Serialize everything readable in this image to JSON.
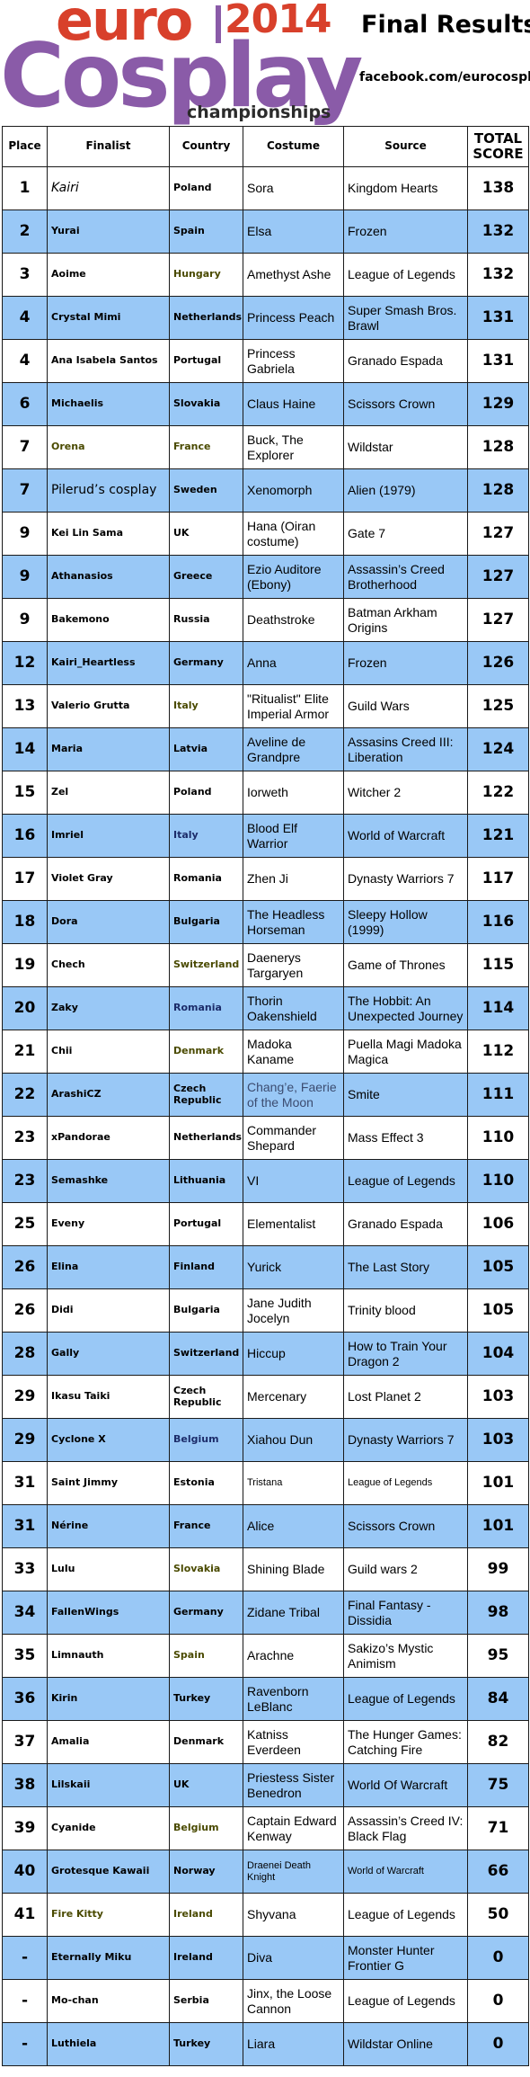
{
  "header": {
    "logo_euro": "euro",
    "logo_year": "2014",
    "logo_cosplay": "Cosplay",
    "logo_champ": "championships",
    "title": "Final Results",
    "facebook": "facebook.com/eurocosplay"
  },
  "columns": {
    "place": "Place",
    "finalist": "Finalist",
    "country": "Country",
    "costume": "Costume",
    "source": "Source",
    "total_line1": "TOTAL",
    "total_line2": "SCORE"
  },
  "colors": {
    "row_blue": "#99c8f6",
    "logo_red": "#d8402b",
    "logo_purple": "#8a5ba8"
  },
  "rows": [
    {
      "place": "1",
      "finalist": "Kairi",
      "country": "Poland",
      "costume": "Sora",
      "source": "Kingdom Hearts",
      "score": "138"
    },
    {
      "place": "2",
      "finalist": "Yurai",
      "country": "Spain",
      "costume": "Elsa",
      "source": "Frozen",
      "score": "132"
    },
    {
      "place": "3",
      "finalist": "Aoime",
      "country": "Hungary",
      "costume": "Amethyst Ashe",
      "source": "League of Legends",
      "score": "132"
    },
    {
      "place": "4",
      "finalist": "Crystal Mimi",
      "country": "Netherlands",
      "costume": "Princess Peach",
      "source": "Super Smash Bros. Brawl",
      "score": "131"
    },
    {
      "place": "4",
      "finalist": "Ana Isabela Santos",
      "country": "Portugal",
      "costume": "Princess Gabriela",
      "source": "Granado Espada",
      "score": "131"
    },
    {
      "place": "6",
      "finalist": "Michaelis",
      "country": "Slovakia",
      "costume": "Claus Haine",
      "source": "Scissors Crown",
      "score": "129"
    },
    {
      "place": "7",
      "finalist": "Orena",
      "country": "France",
      "costume": "Buck, The Explorer",
      "source": "Wildstar",
      "score": "128"
    },
    {
      "place": "7",
      "finalist": "Pilerud’s cosplay",
      "country": "Sweden",
      "costume": "Xenomorph",
      "source": "Alien (1979)",
      "score": "128"
    },
    {
      "place": "9",
      "finalist": "Kei Lin Sama",
      "country": "UK",
      "costume": "Hana (Oiran costume)",
      "source": "Gate 7",
      "score": "127"
    },
    {
      "place": "9",
      "finalist": "Athanasios",
      "country": "Greece",
      "costume": "Ezio Auditore (Ebony)",
      "source": "Assassin’s Creed Brotherhood",
      "score": "127"
    },
    {
      "place": "9",
      "finalist": "Bakemono",
      "country": "Russia",
      "costume": "Deathstroke",
      "source": "Batman Arkham Origins",
      "score": "127"
    },
    {
      "place": "12",
      "finalist": "Kairi_Heartless",
      "country": "Germany",
      "costume": "Anna",
      "source": "Frozen",
      "score": "126"
    },
    {
      "place": "13",
      "finalist": "Valerio Grutta",
      "country": "Italy",
      "costume": "\"Ritualist\" Elite Imperial Armor",
      "source": "Guild Wars",
      "score": "125"
    },
    {
      "place": "14",
      "finalist": "Maria",
      "country": "Latvia",
      "costume": "Aveline de Grandpre",
      "source": "Assasins Creed III: Liberation",
      "score": "124"
    },
    {
      "place": "15",
      "finalist": "Zel",
      "country": "Poland",
      "costume": "Iorweth",
      "source": "Witcher 2",
      "score": "122"
    },
    {
      "place": "16",
      "finalist": "Imriel",
      "country": "Italy",
      "costume": "Blood Elf Warrior",
      "source": "World of Warcraft",
      "score": "121"
    },
    {
      "place": "17",
      "finalist": "Violet Gray",
      "country": "Romania",
      "costume": "Zhen Ji",
      "source": "Dynasty Warriors 7",
      "score": "117"
    },
    {
      "place": "18",
      "finalist": "Dora",
      "country": "Bulgaria",
      "costume": "The Headless Horseman",
      "source": "Sleepy Hollow (1999)",
      "score": "116"
    },
    {
      "place": "19",
      "finalist": "Chech",
      "country": "Switzerland",
      "costume": "Daenerys Targaryen",
      "source": "Game of Thrones",
      "score": "115"
    },
    {
      "place": "20",
      "finalist": "Zaky",
      "country": "Romania",
      "costume": "Thorin Oakenshield",
      "source": "The Hobbit: An Unexpected Journey",
      "score": "114"
    },
    {
      "place": "21",
      "finalist": "Chii",
      "country": "Denmark",
      "costume": "Madoka Kaname",
      "source": "Puella Magi Madoka Magica",
      "score": "112"
    },
    {
      "place": "22",
      "finalist": "ArashiCZ",
      "country": "Czech Republic",
      "costume": "Chang’e, Faerie of the Moon",
      "source": "Smite",
      "score": "111"
    },
    {
      "place": "23",
      "finalist": "xPandorae",
      "country": "Netherlands",
      "costume": "Commander Shepard",
      "source": "Mass Effect 3",
      "score": "110"
    },
    {
      "place": "23",
      "finalist": "Semashke",
      "country": "Lithuania",
      "costume": "VI",
      "source": "League of Legends",
      "score": "110"
    },
    {
      "place": "25",
      "finalist": "Eveny",
      "country": "Portugal",
      "costume": "Elementalist",
      "source": "Granado Espada",
      "score": "106"
    },
    {
      "place": "26",
      "finalist": "Elina",
      "country": "Finland",
      "costume": "Yurick",
      "source": "The Last Story",
      "score": "105"
    },
    {
      "place": "26",
      "finalist": "Didi",
      "country": "Bulgaria",
      "costume": "Jane Judith Jocelyn",
      "source": "Trinity blood",
      "score": "105"
    },
    {
      "place": "28",
      "finalist": "Gally",
      "country": "Switzerland",
      "costume": "Hiccup",
      "source": "How to Train Your Dragon 2",
      "score": "104"
    },
    {
      "place": "29",
      "finalist": "Ikasu Taiki",
      "country": "Czech Republic",
      "costume": "Mercenary",
      "source": "Lost Planet 2",
      "score": "103"
    },
    {
      "place": "29",
      "finalist": "Cyclone X",
      "country": "Belgium",
      "costume": "Xiahou Dun",
      "source": "Dynasty Warriors 7",
      "score": "103"
    },
    {
      "place": "31",
      "finalist": "Saint Jimmy",
      "country": "Estonia",
      "costume": "Tristana",
      "source": "League of Legends",
      "score": "101"
    },
    {
      "place": "31",
      "finalist": "Nérine",
      "country": "France",
      "costume": "Alice",
      "source": "Scissors Crown",
      "score": "101"
    },
    {
      "place": "33",
      "finalist": "Lulu",
      "country": "Slovakia",
      "costume": "Shining Blade",
      "source": "Guild wars 2",
      "score": "99"
    },
    {
      "place": "34",
      "finalist": "FallenWings",
      "country": "Germany",
      "costume": "Zidane Tribal",
      "source": "Final Fantasy - Dissidia",
      "score": "98"
    },
    {
      "place": "35",
      "finalist": "Limnauth",
      "country": "Spain",
      "costume": "Arachne",
      "source": "Sakizo’s Mystic Animism",
      "score": "95"
    },
    {
      "place": "36",
      "finalist": "Kirin",
      "country": "Turkey",
      "costume": "Ravenborn LeBlanc",
      "source": "League of Legends",
      "score": "84"
    },
    {
      "place": "37",
      "finalist": "Amalia",
      "country": "Denmark",
      "costume": "Katniss Everdeen",
      "source": "The Hunger Games: Catching Fire",
      "score": "82"
    },
    {
      "place": "38",
      "finalist": "Lilskaii",
      "country": "UK",
      "costume": "Priestess Sister Benedron",
      "source": "World Of Warcraft",
      "score": "75"
    },
    {
      "place": "39",
      "finalist": "Cyanide",
      "country": "Belgium",
      "costume": "Captain Edward Kenway",
      "source": "Assassin’s Creed IV: Black Flag",
      "score": "71"
    },
    {
      "place": "40",
      "finalist": "Grotesque Kawaii",
      "country": "Norway",
      "costume": "Draenei Death Knight",
      "source": "World of Warcraft",
      "score": "66"
    },
    {
      "place": "41",
      "finalist": "Fire Kitty",
      "country": "Ireland",
      "costume": "Shyvana",
      "source": "League of Legends",
      "score": "50"
    },
    {
      "place": "-",
      "finalist": "Eternally Miku",
      "country": "Ireland",
      "costume": "Diva",
      "source": "Monster Hunter Frontier G",
      "score": "0"
    },
    {
      "place": "-",
      "finalist": "Mo-chan",
      "country": "Serbia",
      "costume": "Jinx, the Loose Cannon",
      "source": "League of Legends",
      "score": "0"
    },
    {
      "place": "-",
      "finalist": "Luthiela",
      "country": "Turkey",
      "costume": "Liara",
      "source": "Wildstar Online",
      "score": "0"
    }
  ]
}
